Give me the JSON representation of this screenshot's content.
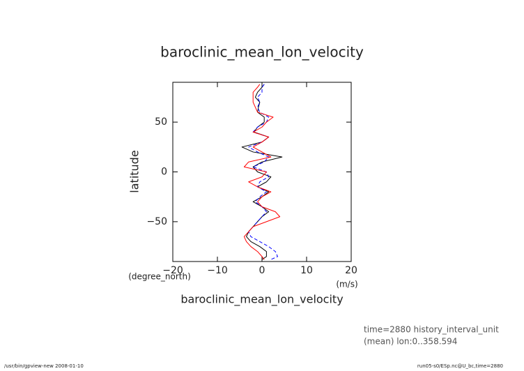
{
  "chart_data": {
    "type": "line",
    "title": "baroclinic_mean_lon_velocity",
    "x_label": "baroclinic_mean_lon_velocity",
    "x_unit": "(m/s)",
    "y_label": "latitude",
    "y_unit": "(degree_north)",
    "y": [
      88,
      85,
      80,
      75,
      70,
      65,
      60,
      55,
      50,
      45,
      40,
      35,
      30,
      25,
      20,
      15,
      10,
      5,
      0,
      -5,
      -10,
      -15,
      -20,
      -25,
      -30,
      -35,
      -40,
      -45,
      -50,
      -55,
      -60,
      -65,
      -70,
      -75,
      -80,
      -85,
      -88
    ],
    "series": [
      {
        "color": "#000000",
        "dash": "none",
        "values": [
          0.5,
          0,
          -1,
          -1.5,
          -0.5,
          -0.8,
          -1,
          0.5,
          0.5,
          -1,
          -1.8,
          1.5,
          0,
          -4.5,
          -2,
          4.5,
          0,
          -2,
          -1,
          2,
          1,
          -1,
          1.5,
          0,
          -2,
          0,
          1.5,
          0,
          -1,
          -2,
          -3,
          -3.5,
          -2.5,
          -0.5,
          1,
          1,
          0
        ]
      },
      {
        "color": "#0000ff",
        "dash": "5 3",
        "values": [
          0.5,
          0,
          0,
          -1,
          -0.5,
          -1,
          -0.5,
          1.5,
          1,
          -1,
          -2,
          1.5,
          0,
          -3,
          -1,
          1.5,
          0.5,
          -2,
          1,
          1.5,
          -0.5,
          -1,
          1,
          -0.5,
          -1.5,
          0,
          1,
          0,
          -1,
          -2,
          -3,
          -2.5,
          -0.5,
          1.5,
          3,
          3.5,
          2
        ]
      },
      {
        "color": "#ff0000",
        "dash": "none",
        "values": [
          -0.5,
          -1,
          -2,
          -2,
          -2,
          -1.5,
          -1,
          2.5,
          1,
          0,
          -2,
          1.5,
          0,
          -2,
          0,
          2,
          -3,
          -4,
          1,
          0,
          -3,
          -1,
          2,
          0,
          -1,
          0,
          3,
          4,
          1,
          -2,
          -3,
          -4,
          -3.5,
          -2.5,
          -1,
          0,
          0.5
        ]
      }
    ],
    "xlim": [
      -20,
      20
    ],
    "xticks": [
      {
        "value": -20,
        "label": "−20"
      },
      {
        "value": -10,
        "label": "−10"
      },
      0,
      10,
      20
    ],
    "ylim": [
      -90,
      90
    ],
    "yticks": [
      {
        "value": -50,
        "label": "−50"
      },
      0,
      50
    ],
    "annotations": [
      "time=2880 history_interval_unit",
      "(mean) lon:0..358.594"
    ],
    "footer_left": "/usr/bin/gpview-new  2008-01-10",
    "footer_right": "run05-s0/ESp.nc@U_bc,time=2880"
  }
}
